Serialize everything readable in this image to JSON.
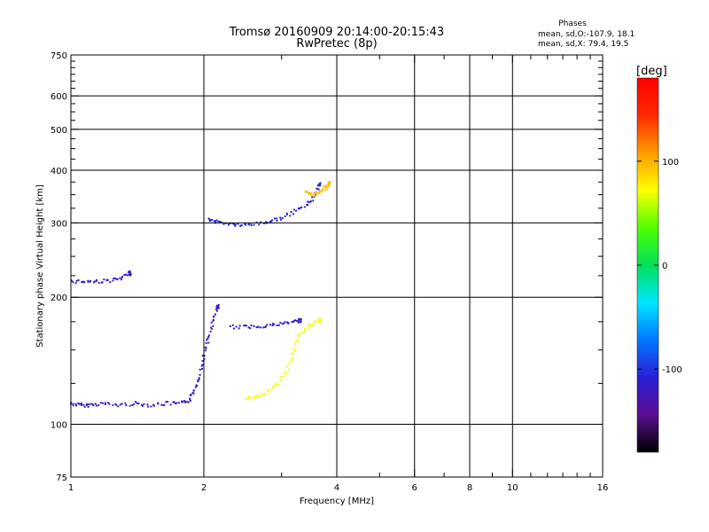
{
  "chart_data": {
    "type": "scatter",
    "title": "Tromsø 20160909 20:14:00-20:15:43",
    "subtitle": "RwPretec (8p)",
    "xlabel": "Frequency [MHz]",
    "ylabel": "Stationary phase Virtual Height [km]",
    "x_scale": "log",
    "y_scale": "log",
    "xlim": [
      1,
      16
    ],
    "ylim": [
      75,
      750
    ],
    "x_ticks": [
      1,
      2,
      4,
      6,
      8,
      10,
      16
    ],
    "x_tick_labels": [
      "1",
      "2",
      "4",
      "6",
      "8",
      "10",
      "16"
    ],
    "x_minor_ticks": [
      3,
      5,
      7,
      9,
      11,
      12,
      13,
      14,
      15
    ],
    "y_ticks": [
      75,
      100,
      200,
      300,
      400,
      500,
      600,
      750
    ],
    "y_tick_labels": [
      "75",
      "100",
      "200",
      "300",
      "400",
      "500",
      "600",
      "750"
    ],
    "y_minor_ticks": [
      125,
      150,
      175,
      225,
      250,
      275,
      325,
      350,
      375,
      425,
      450,
      475,
      525,
      550,
      575,
      625,
      650,
      675,
      700,
      725
    ],
    "grid": true,
    "grid_x": [
      2,
      4,
      6,
      8,
      10
    ],
    "grid_y": [
      100,
      200,
      300,
      400,
      500,
      600
    ],
    "legend": {
      "heading": "Phases",
      "line1": "mean, sd,O:-107.9, 18.1",
      "line2": "mean, sd,X:  79.4, 19.5"
    },
    "colorbar": {
      "label": "[deg]",
      "min": -180,
      "max": 180,
      "ticks": [
        100,
        0,
        -100
      ],
      "tick_labels": [
        "100",
        "0",
        "-100"
      ],
      "colors": [
        "#000000",
        "#5a1090",
        "#2a1fd8",
        "#0078ff",
        "#00e6ff",
        "#00e05a",
        "#50ff00",
        "#ffff00",
        "#ff9c00",
        "#ff2a00",
        "#ff0000"
      ]
    },
    "series": [
      {
        "id": "lowE-trace",
        "points": [
          [
            1.0,
            112
          ],
          [
            1.05,
            111
          ],
          [
            1.1,
            111
          ],
          [
            1.18,
            112
          ],
          [
            1.28,
            111
          ],
          [
            1.4,
            112
          ],
          [
            1.52,
            111
          ],
          [
            1.65,
            112
          ],
          [
            1.78,
            112
          ],
          [
            1.86,
            114
          ],
          [
            1.9,
            120
          ],
          [
            1.95,
            130
          ],
          [
            2.0,
            145
          ],
          [
            2.05,
            160
          ],
          [
            2.1,
            175
          ],
          [
            2.15,
            190
          ]
        ],
        "phase": -115
      },
      {
        "id": "F-low-trace",
        "points": [
          [
            1.0,
            218
          ],
          [
            1.07,
            218
          ],
          [
            1.14,
            218
          ],
          [
            1.22,
            219
          ],
          [
            1.3,
            221
          ],
          [
            1.36,
            228
          ]
        ],
        "phase": -115
      },
      {
        "id": "F2-O-trace",
        "points": [
          [
            2.05,
            305
          ],
          [
            2.15,
            302
          ],
          [
            2.3,
            298
          ],
          [
            2.45,
            296
          ],
          [
            2.6,
            298
          ],
          [
            2.8,
            302
          ],
          [
            3.0,
            308
          ],
          [
            3.2,
            318
          ],
          [
            3.4,
            330
          ],
          [
            3.55,
            345
          ],
          [
            3.65,
            370
          ]
        ],
        "phase": -105
      },
      {
        "id": "F2-X-trace",
        "points": [
          [
            3.4,
            355
          ],
          [
            3.5,
            350
          ],
          [
            3.6,
            352
          ],
          [
            3.7,
            360
          ],
          [
            3.8,
            365
          ],
          [
            3.85,
            372
          ]
        ],
        "phase": 95
      },
      {
        "id": "Es-O-trace",
        "points": [
          [
            2.3,
            170
          ],
          [
            2.5,
            170
          ],
          [
            2.7,
            171
          ],
          [
            2.9,
            172
          ],
          [
            3.1,
            174
          ],
          [
            3.3,
            176
          ]
        ],
        "phase": -110
      },
      {
        "id": "Es-X-trace",
        "points": [
          [
            2.5,
            115
          ],
          [
            2.65,
            116
          ],
          [
            2.8,
            120
          ],
          [
            2.95,
            125
          ],
          [
            3.1,
            135
          ],
          [
            3.2,
            150
          ],
          [
            3.3,
            165
          ],
          [
            3.5,
            172
          ],
          [
            3.65,
            176
          ]
        ],
        "phase": 70
      }
    ]
  }
}
